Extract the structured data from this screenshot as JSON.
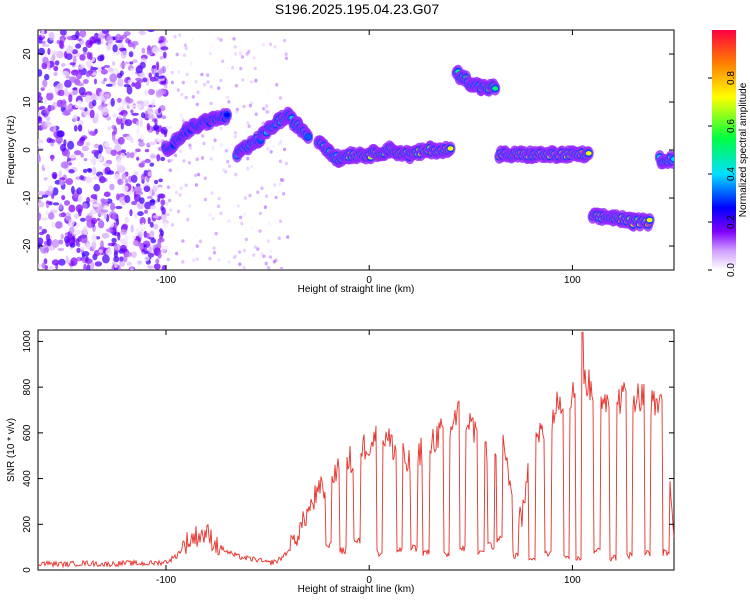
{
  "title": "S196.2025.195.04.23.G07",
  "chart_data": [
    {
      "type": "heatmap",
      "xlabel": "Height of straight line (km)",
      "ylabel": "Frequency (Hz)",
      "xlim": [
        -163,
        150
      ],
      "ylim": [
        -25,
        25
      ],
      "xticks": [
        -100,
        0,
        100
      ],
      "xtick_labels": [
        "-100",
        "0",
        "100"
      ],
      "yticks": [
        20,
        10,
        0,
        -10,
        -20
      ],
      "ytick_labels": [
        "20",
        "10",
        "0",
        "-10",
        "-20"
      ],
      "colorbar": {
        "label": "Normalized spectral amplitude",
        "range": [
          0,
          1
        ],
        "ticks": [
          0.0,
          0.2,
          0.4,
          0.6,
          0.8
        ],
        "tick_labels": [
          "0.0",
          "0.2",
          "0.4",
          "0.6",
          "0.8"
        ],
        "colors": [
          "#ffffff",
          "#b060ff",
          "#0000ff",
          "#00e0ff",
          "#00ff40",
          "#ffff00",
          "#ff8000",
          "#ff0040"
        ]
      },
      "ridge": [
        {
          "x": [
            -100,
            -90,
            -80,
            -70
          ],
          "freq": [
            0,
            4,
            6,
            7
          ],
          "amp": 0.3
        },
        {
          "x": [
            -65,
            -55,
            -45,
            -40,
            -35,
            -30
          ],
          "freq": [
            -1,
            2,
            6,
            7,
            5,
            3
          ],
          "amp": 0.45
        },
        {
          "x": [
            -25,
            -20,
            -15,
            -10
          ],
          "freq": [
            2,
            0,
            -2,
            -1
          ],
          "amp": 0.55
        },
        {
          "x": [
            -10,
            0,
            10,
            20,
            30,
            40
          ],
          "freq": [
            -1,
            -1,
            0,
            -1,
            0,
            0
          ],
          "amp": 0.85
        },
        {
          "x": [
            43,
            50,
            55,
            62
          ],
          "freq": [
            16,
            14,
            13,
            13
          ],
          "amp": 0.6
        },
        {
          "x": [
            64,
            80,
            95,
            108
          ],
          "freq": [
            -1,
            -1,
            -1,
            -1
          ],
          "amp": 0.85
        },
        {
          "x": [
            110,
            120,
            130,
            138
          ],
          "freq": [
            -14,
            -14,
            -15,
            -15
          ],
          "amp": 0.85
        },
        {
          "x": [
            143,
            150
          ],
          "freq": [
            -2,
            -2
          ],
          "amp": 0.5
        }
      ]
    },
    {
      "type": "line",
      "xlabel": "Height of straight line (km)",
      "ylabel": "SNR (10 * v/v)",
      "xlim": [
        -163,
        150
      ],
      "ylim": [
        0,
        1050
      ],
      "xticks": [
        -100,
        0,
        100
      ],
      "xtick_labels": [
        "-100",
        "0",
        "100"
      ],
      "yticks": [
        0,
        200,
        400,
        600,
        800,
        1000
      ],
      "ytick_labels": [
        "0",
        "200",
        "400",
        "600",
        "800",
        "1000"
      ],
      "color": "#e8302a",
      "x": [
        -163,
        -150,
        -140,
        -130,
        -120,
        -110,
        -100,
        -95,
        -90,
        -85,
        -80,
        -75,
        -70,
        -65,
        -60,
        -55,
        -50,
        -45,
        -40,
        -35,
        -30,
        -25,
        -20,
        -15,
        -10,
        -5,
        0,
        5,
        10,
        15,
        20,
        25,
        30,
        35,
        40,
        45,
        50,
        55,
        60,
        65,
        70,
        75,
        80,
        85,
        90,
        95,
        100,
        105,
        110,
        115,
        120,
        125,
        130,
        135,
        140,
        145,
        150
      ],
      "y": [
        30,
        25,
        30,
        25,
        30,
        28,
        35,
        60,
        120,
        150,
        160,
        110,
        80,
        60,
        50,
        45,
        30,
        40,
        80,
        160,
        260,
        330,
        380,
        460,
        470,
        520,
        560,
        600,
        560,
        500,
        460,
        520,
        560,
        600,
        620,
        700,
        640,
        560,
        520,
        580,
        360,
        220,
        520,
        600,
        680,
        760,
        760,
        860,
        780,
        760,
        720,
        760,
        760,
        760,
        720,
        760,
        100
      ],
      "dips": [
        -20,
        -13,
        -6,
        5,
        15,
        22,
        28,
        38,
        46,
        55,
        60,
        64,
        72,
        80,
        88,
        97,
        103,
        112,
        120,
        128,
        137,
        146
      ],
      "dip_depth": [
        90,
        70,
        110,
        60,
        70,
        80,
        60,
        50,
        80,
        60,
        90,
        120,
        50,
        40,
        60,
        50,
        40,
        70,
        40,
        50,
        60,
        60
      ]
    }
  ]
}
